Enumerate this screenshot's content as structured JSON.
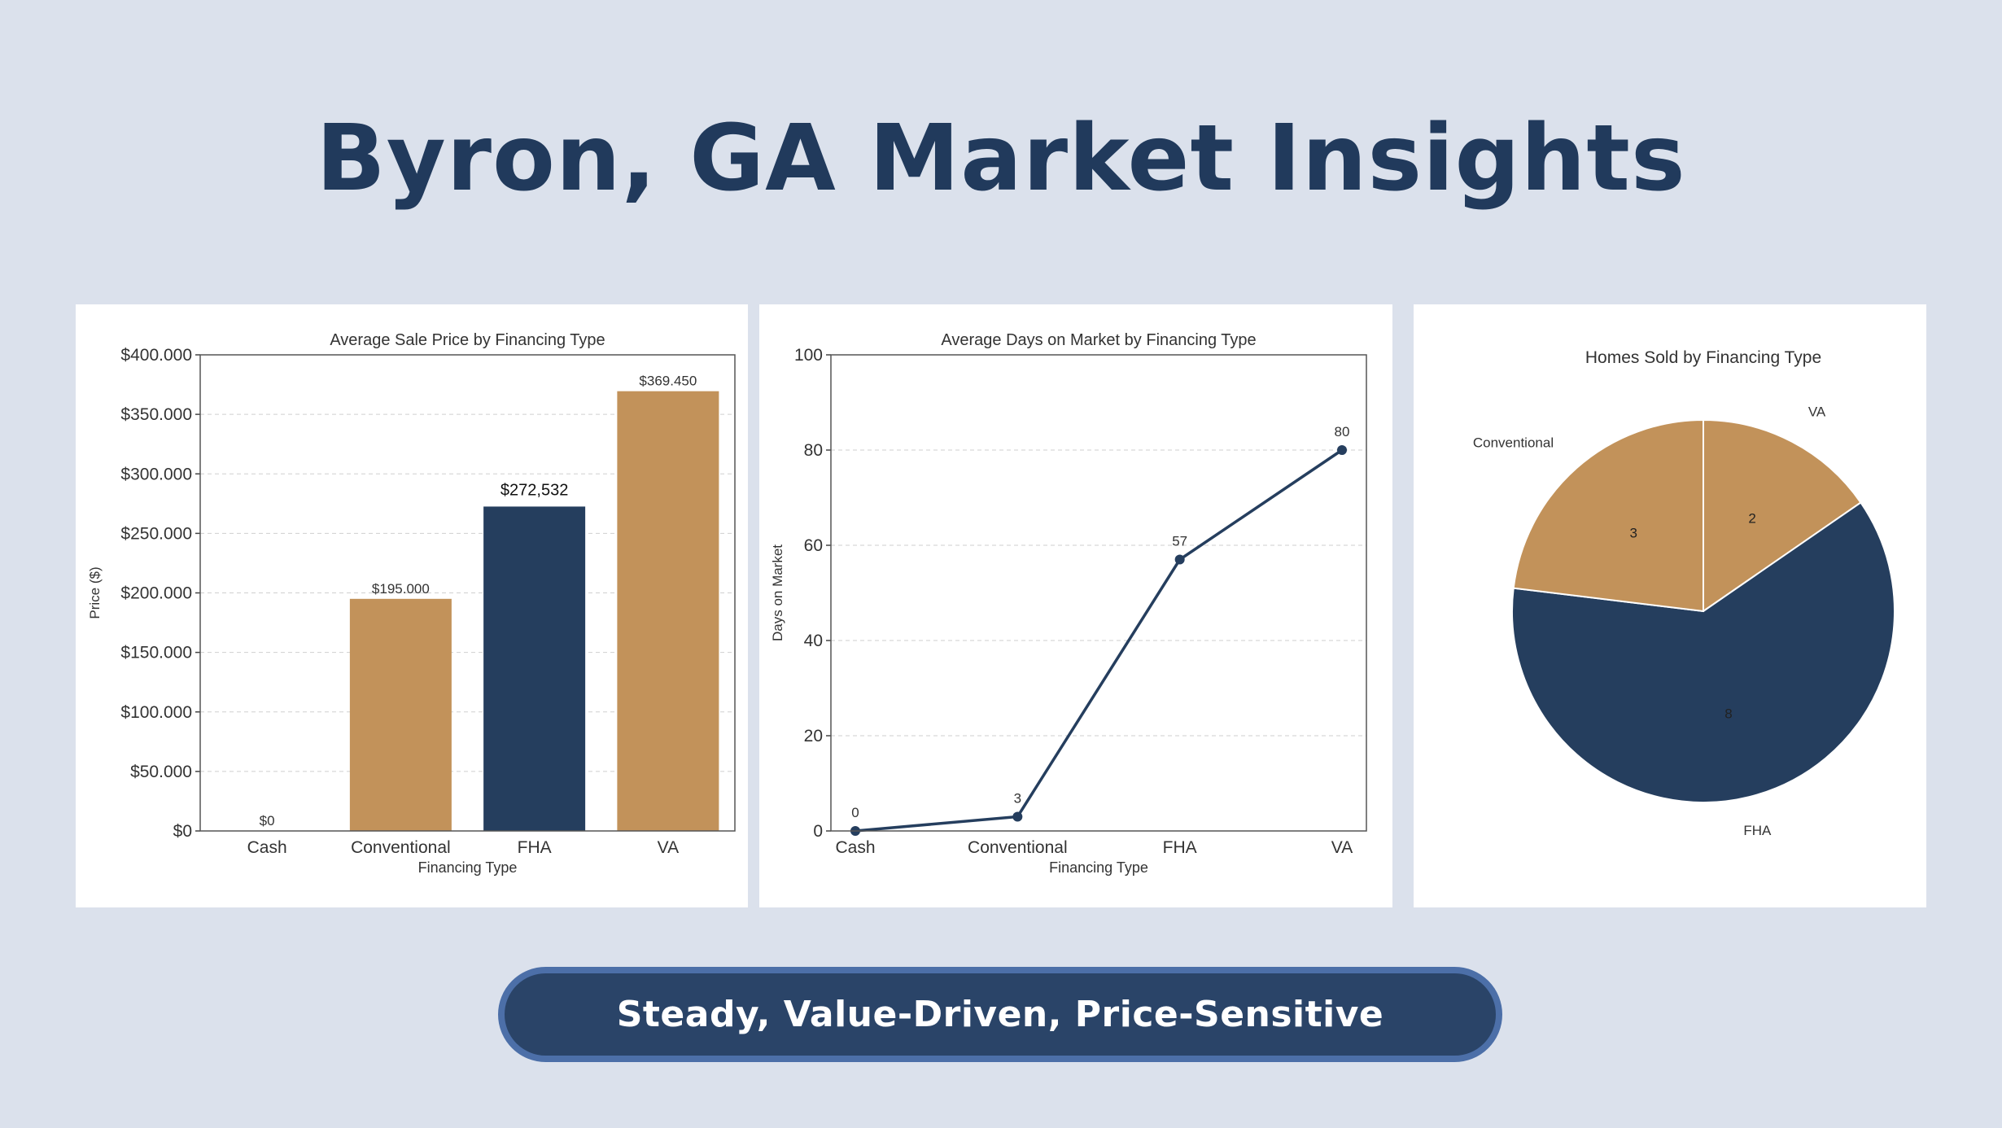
{
  "page": {
    "title": "Byron, GA Market Insights",
    "tagline": "Steady, Value-Driven, Price-Sensitive"
  },
  "colors": {
    "background": "#dbe1ec",
    "navy": "#253e5e",
    "tan": "#c2925a",
    "banner_border": "#4c6fa8"
  },
  "chart_data": [
    {
      "id": "price",
      "type": "bar",
      "title": "Average Sale Price by Financing Type",
      "xlabel": "Financing Type",
      "ylabel": "Price ($)",
      "categories": [
        "Cash",
        "Conventional",
        "FHA",
        "VA"
      ],
      "values": [
        0,
        195000,
        272532,
        369450
      ],
      "value_labels": [
        "$0",
        "$195.000",
        "$272,532",
        "$369.450"
      ],
      "bar_colors": [
        "#c2925a",
        "#c2925a",
        "#253e5e",
        "#c2925a"
      ],
      "ylim": [
        0,
        400000
      ],
      "yticks": [
        0,
        50000,
        100000,
        150000,
        200000,
        250000,
        300000,
        350000,
        400000
      ],
      "ytick_labels": [
        "$0",
        "$50.000",
        "$100.000",
        "$150.000",
        "$200.000",
        "$250.000",
        "$300.000",
        "$350.000",
        "$400.000"
      ],
      "grid": true
    },
    {
      "id": "days",
      "type": "line",
      "title": "Average Days on Market by Financing Type",
      "xlabel": "Financing Type",
      "ylabel": "Days on Market",
      "categories": [
        "Cash",
        "Conventional",
        "FHA",
        "VA"
      ],
      "values": [
        0,
        3,
        57,
        80
      ],
      "value_labels": [
        "0",
        "3",
        "57",
        "80"
      ],
      "ylim": [
        0,
        100
      ],
      "yticks": [
        0,
        20,
        40,
        60,
        80,
        100
      ],
      "ytick_labels": [
        "0",
        "20",
        "40",
        "60",
        "80",
        "100"
      ],
      "line_color": "#253e5e",
      "grid": true
    },
    {
      "id": "homes",
      "type": "pie",
      "title": "Homes Sold by Financing Type",
      "slices": [
        {
          "label": "VA",
          "value": 2,
          "value_label": "2",
          "color": "#c2925a"
        },
        {
          "label": "FHA",
          "value": 8,
          "value_label": "8",
          "color": "#253e5e"
        },
        {
          "label": "Conventional",
          "value": 3,
          "value_label": "3",
          "color": "#c2925a"
        }
      ]
    }
  ]
}
